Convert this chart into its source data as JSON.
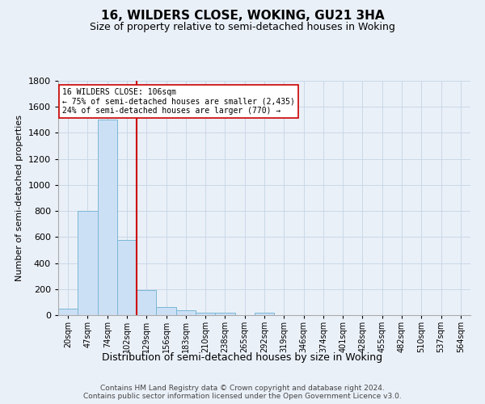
{
  "title": "16, WILDERS CLOSE, WOKING, GU21 3HA",
  "subtitle": "Size of property relative to semi-detached houses in Woking",
  "xlabel": "Distribution of semi-detached houses by size in Woking",
  "ylabel": "Number of semi-detached properties",
  "footer_line1": "Contains HM Land Registry data © Crown copyright and database right 2024.",
  "footer_line2": "Contains public sector information licensed under the Open Government Licence v3.0.",
  "bin_labels": [
    "20sqm",
    "47sqm",
    "74sqm",
    "102sqm",
    "129sqm",
    "156sqm",
    "183sqm",
    "210sqm",
    "238sqm",
    "265sqm",
    "292sqm",
    "319sqm",
    "346sqm",
    "374sqm",
    "401sqm",
    "428sqm",
    "455sqm",
    "482sqm",
    "510sqm",
    "537sqm",
    "564sqm"
  ],
  "bar_values": [
    50,
    800,
    1500,
    580,
    190,
    60,
    40,
    20,
    20,
    0,
    20,
    0,
    0,
    0,
    0,
    0,
    0,
    0,
    0,
    0,
    0
  ],
  "bar_color": "#cce0f5",
  "bar_edge_color": "#7ab8d4",
  "grid_color": "#c8d8e8",
  "vline_color": "#cc0000",
  "annotation_text": "16 WILDERS CLOSE: 106sqm\n← 75% of semi-detached houses are smaller (2,435)\n24% of semi-detached houses are larger (770) →",
  "annotation_box_color": "#ffffff",
  "annotation_box_edge": "#cc0000",
  "ylim": [
    0,
    1800
  ],
  "yticks": [
    0,
    200,
    400,
    600,
    800,
    1000,
    1200,
    1400,
    1600,
    1800
  ],
  "bg_color": "#eaf0f8",
  "plot_bg_color": "#eaf0f8",
  "title_fontsize": 11,
  "subtitle_fontsize": 9,
  "ylabel_fontsize": 8,
  "xlabel_fontsize": 9,
  "tick_fontsize": 8,
  "xtick_fontsize": 7,
  "footer_fontsize": 6.5
}
